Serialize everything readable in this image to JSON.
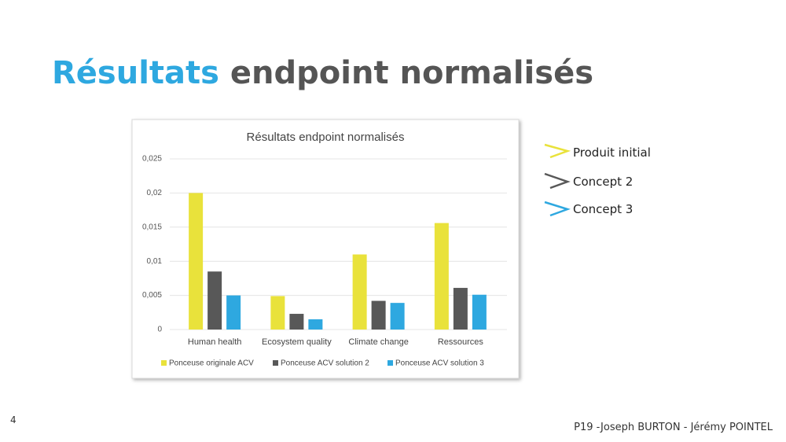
{
  "slide": {
    "title_highlight": "Résultats",
    "title_rest": "endpoint normalisés",
    "legend": [
      "Produit initial",
      "Concept 2",
      "Concept 3"
    ],
    "page_number": "4",
    "footer": "P19 -Joseph BURTON - Jérémy POINTEL"
  },
  "chart_data": {
    "type": "bar",
    "title": "Résultats endpoint normalisés",
    "categories": [
      "Human health",
      "Ecosystem quality",
      "Climate change",
      "Ressources"
    ],
    "series": [
      {
        "name": "Ponceuse originale ACV",
        "color": "#e9e23b",
        "values": [
          0.02,
          0.0049,
          0.011,
          0.0156
        ]
      },
      {
        "name": "Ponceuse ACV solution 2",
        "color": "#585858",
        "values": [
          0.0085,
          0.0023,
          0.0042,
          0.0061
        ]
      },
      {
        "name": "Ponceuse ACV solution 3",
        "color": "#2ea8e0",
        "values": [
          0.005,
          0.0015,
          0.0039,
          0.0051
        ]
      }
    ],
    "ylim": [
      0,
      0.025
    ],
    "yticks": [
      0,
      {
        "value": 0.005,
        "label": "0,005"
      },
      {
        "value": 0.01,
        "label": "0,01"
      },
      {
        "value": 0.015,
        "label": "0,015"
      },
      {
        "value": 0.02,
        "label": "0,02"
      },
      {
        "value": 0.025,
        "label": "0,025"
      }
    ],
    "grid": true,
    "legend_position": "bottom"
  }
}
